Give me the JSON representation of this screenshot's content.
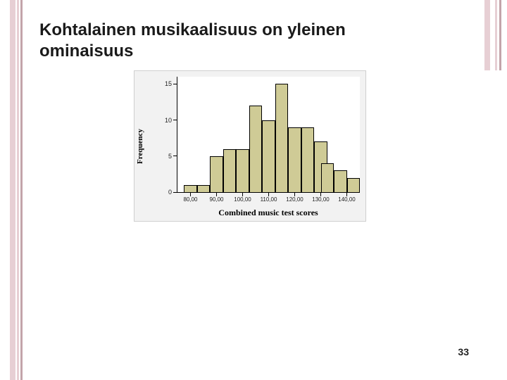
{
  "slide": {
    "title": "Kohtalainen musikaalisuus on yleinen ominaisuus",
    "page_number": "33"
  },
  "decor": {
    "left_stripes": [
      "#e7cfd4",
      "#e7cfd4",
      "#c3a4aa"
    ],
    "right_stripes": [
      "#e7cfd4",
      "#e7cfd4",
      "#c3a4aa"
    ]
  },
  "chart": {
    "type": "histogram",
    "xlabel": "Combined music test scores",
    "ylabel": "Frequency",
    "plot_background": "#ffffff",
    "panel_background": "#f2f2f2",
    "panel_border": "#cfcfcf",
    "axis_color": "#000000",
    "bar_color": "#cfcb96",
    "bar_border": "#000000",
    "label_font": "Times New Roman",
    "label_fontsize": 12,
    "tick_fontsize": 9,
    "x": {
      "min": 75,
      "max": 145,
      "ticks": [
        80,
        90,
        100,
        110,
        120,
        130,
        140
      ],
      "tick_labels": [
        "80,00",
        "90,00",
        "100,00",
        "110,00",
        "120,00",
        "130,00",
        "140,00"
      ]
    },
    "y": {
      "min": 0,
      "max": 16,
      "ticks": [
        0,
        5,
        10,
        15
      ],
      "tick_labels": [
        "0",
        "5",
        "10",
        "15"
      ]
    },
    "bin_width": 5,
    "bins": [
      {
        "start": 77.5,
        "count": 1
      },
      {
        "start": 82.5,
        "count": 1
      },
      {
        "start": 87.5,
        "count": 5
      },
      {
        "start": 92.5,
        "count": 6
      },
      {
        "start": 97.5,
        "count": 6
      },
      {
        "start": 102.5,
        "count": 12
      },
      {
        "start": 107.5,
        "count": 10
      },
      {
        "start": 112.5,
        "count": 15
      },
      {
        "start": 117.5,
        "count": 9
      },
      {
        "start": 122.5,
        "count": 9
      },
      {
        "start": 127.5,
        "count": 7
      },
      {
        "start": 130.0,
        "count": 4
      },
      {
        "start": 135.0,
        "count": 3
      },
      {
        "start": 140.0,
        "count": 2
      }
    ]
  }
}
